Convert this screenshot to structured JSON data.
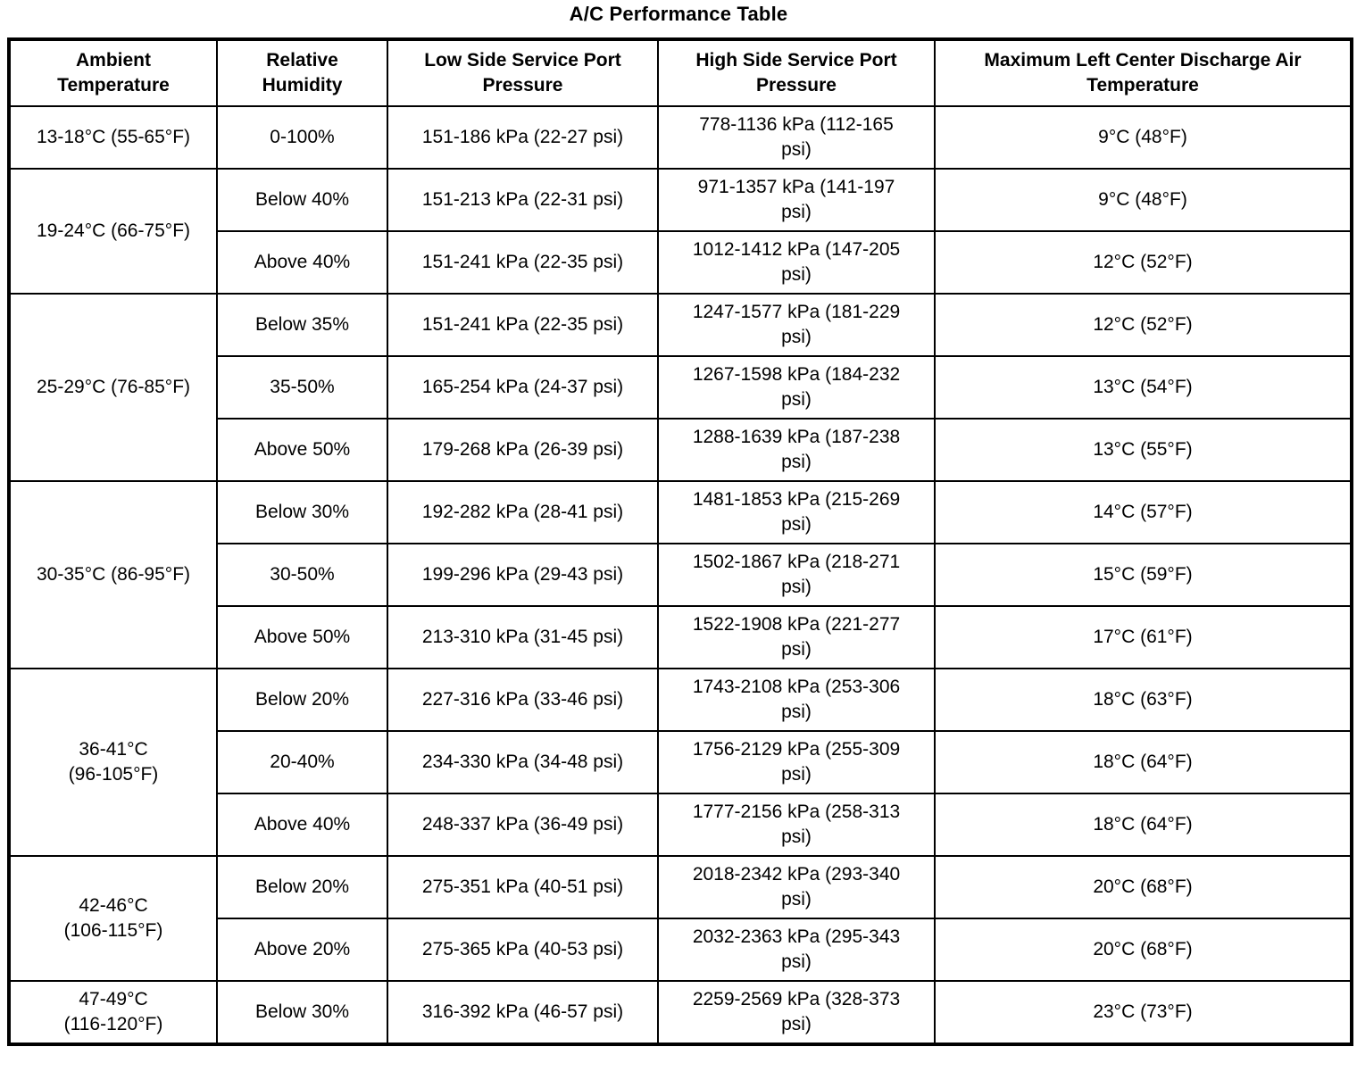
{
  "title": "A/C Performance Table",
  "table": {
    "headers": [
      "Ambient\nTemperature",
      "Relative\nHumidity",
      "Low Side Service Port\nPressure",
      "High Side Service Port\nPressure",
      "Maximum Left Center Discharge Air\nTemperature"
    ],
    "groups": [
      {
        "ambient": "13-18°C (55-65°F)",
        "rows": [
          {
            "humidity": "0-100%",
            "low": "151-186 kPa (22-27 psi)",
            "high": "778-1136 kPa (112-165\npsi)",
            "discharge": "9°C (48°F)"
          }
        ]
      },
      {
        "ambient": "19-24°C (66-75°F)",
        "rows": [
          {
            "humidity": "Below 40%",
            "low": "151-213 kPa (22-31 psi)",
            "high": "971-1357 kPa (141-197\npsi)",
            "discharge": "9°C (48°F)"
          },
          {
            "humidity": "Above 40%",
            "low": "151-241 kPa (22-35 psi)",
            "high": "1012-1412 kPa (147-205\npsi)",
            "discharge": "12°C (52°F)"
          }
        ]
      },
      {
        "ambient": "25-29°C (76-85°F)",
        "rows": [
          {
            "humidity": "Below 35%",
            "low": "151-241 kPa (22-35 psi)",
            "high": "1247-1577 kPa (181-229\npsi)",
            "discharge": "12°C (52°F)"
          },
          {
            "humidity": "35-50%",
            "low": "165-254 kPa (24-37 psi)",
            "high": "1267-1598 kPa (184-232\npsi)",
            "discharge": "13°C (54°F)"
          },
          {
            "humidity": "Above 50%",
            "low": "179-268 kPa (26-39 psi)",
            "high": "1288-1639 kPa (187-238\npsi)",
            "discharge": "13°C (55°F)"
          }
        ]
      },
      {
        "ambient": "30-35°C (86-95°F)",
        "rows": [
          {
            "humidity": "Below 30%",
            "low": "192-282 kPa (28-41 psi)",
            "high": "1481-1853 kPa (215-269\npsi)",
            "discharge": "14°C (57°F)"
          },
          {
            "humidity": "30-50%",
            "low": "199-296 kPa (29-43 psi)",
            "high": "1502-1867 kPa (218-271\npsi)",
            "discharge": "15°C (59°F)"
          },
          {
            "humidity": "Above 50%",
            "low": "213-310 kPa (31-45 psi)",
            "high": "1522-1908 kPa (221-277\npsi)",
            "discharge": "17°C (61°F)"
          }
        ]
      },
      {
        "ambient": "36-41°C\n(96-105°F)",
        "rows": [
          {
            "humidity": "Below 20%",
            "low": "227-316 kPa (33-46 psi)",
            "high": "1743-2108 kPa (253-306\npsi)",
            "discharge": "18°C (63°F)"
          },
          {
            "humidity": "20-40%",
            "low": "234-330 kPa (34-48 psi)",
            "high": "1756-2129 kPa (255-309\npsi)",
            "discharge": "18°C (64°F)"
          },
          {
            "humidity": "Above 40%",
            "low": "248-337 kPa (36-49 psi)",
            "high": "1777-2156 kPa (258-313\npsi)",
            "discharge": "18°C (64°F)"
          }
        ]
      },
      {
        "ambient": "42-46°C\n(106-115°F)",
        "rows": [
          {
            "humidity": "Below 20%",
            "low": "275-351 kPa (40-51 psi)",
            "high": "2018-2342 kPa (293-340\npsi)",
            "discharge": "20°C (68°F)"
          },
          {
            "humidity": "Above 20%",
            "low": "275-365 kPa (40-53 psi)",
            "high": "2032-2363 kPa (295-343\npsi)",
            "discharge": "20°C (68°F)"
          }
        ]
      },
      {
        "ambient": "47-49°C\n(116-120°F)",
        "rows": [
          {
            "humidity": "Below 30%",
            "low": "316-392 kPa (46-57 psi)",
            "high": "2259-2569 kPa (328-373\npsi)",
            "discharge": "23°C (73°F)"
          }
        ]
      }
    ]
  },
  "colors": {
    "border": "#000000",
    "text": "#000000",
    "background": "#ffffff"
  }
}
